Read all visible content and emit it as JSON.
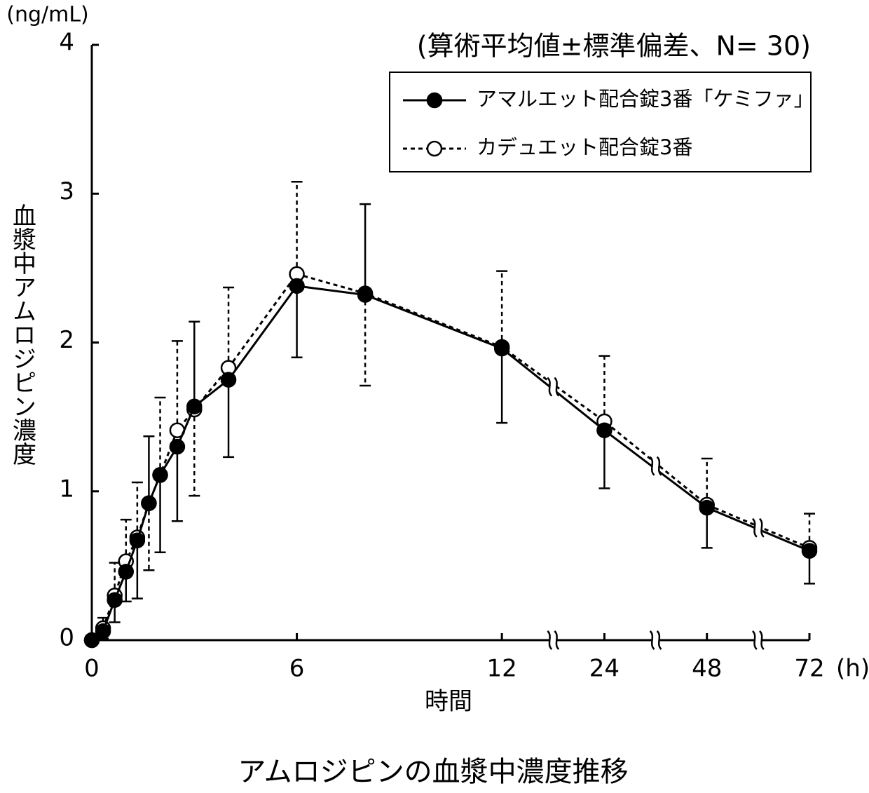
{
  "chart_data": {
    "type": "line",
    "title": "アムロジピンの血漿中濃度推移",
    "annotation": "(算術平均値±標準偏差、N= 30)",
    "y_unit": "(ng/mL)",
    "y_label": "血漿中アムロジピン濃度",
    "x_label": "時間",
    "x_unit": "(h)",
    "x": [
      0,
      0.33,
      0.67,
      1,
      1.33,
      1.67,
      2,
      2.5,
      3,
      4,
      6,
      8,
      12,
      24,
      48,
      72
    ],
    "xlim": [
      0,
      72
    ],
    "xticks": [
      0,
      6,
      12,
      24,
      48,
      72
    ],
    "x_breaks": [
      18,
      36,
      60
    ],
    "ylim": [
      0,
      4
    ],
    "yticks": [
      0,
      1,
      2,
      3,
      4
    ],
    "legend": "upper right",
    "series": [
      {
        "name": "カデュエット配合錠3番",
        "color": "#000000",
        "marker": "open",
        "dash": true,
        "values": [
          0,
          0.08,
          0.3,
          0.53,
          0.69,
          0.92,
          1.11,
          1.41,
          1.55,
          1.83,
          2.46,
          2.33,
          1.97,
          1.47,
          0.91,
          0.62
        ],
        "errors": [
          0,
          0.07,
          0.22,
          0.28,
          0.37,
          0.45,
          0.52,
          0.6,
          0.58,
          0.54,
          0.62,
          0.62,
          0.51,
          0.44,
          0.31,
          0.23
        ],
        "error_side": [
          "up",
          "up",
          "up",
          "up",
          "up",
          "down",
          "up",
          "up",
          "down",
          "up",
          "up",
          "down",
          "up",
          "up",
          "up",
          "up"
        ]
      },
      {
        "name": "アマルエット配合錠3番「ケミファ」",
        "color": "#000000",
        "marker": "filled",
        "dash": false,
        "values": [
          0,
          0.06,
          0.27,
          0.46,
          0.67,
          0.92,
          1.11,
          1.3,
          1.57,
          1.75,
          2.38,
          2.32,
          1.96,
          1.41,
          0.89,
          0.6
        ],
        "errors": [
          0,
          0.05,
          0.15,
          0.2,
          0.39,
          0.45,
          0.52,
          0.5,
          0.57,
          0.52,
          0.48,
          0.61,
          0.5,
          0.39,
          0.27,
          0.22
        ],
        "error_side": [
          "down",
          "down",
          "down",
          "down",
          "down",
          "up",
          "down",
          "down",
          "up",
          "down",
          "down",
          "up",
          "down",
          "down",
          "down",
          "down"
        ]
      }
    ]
  }
}
